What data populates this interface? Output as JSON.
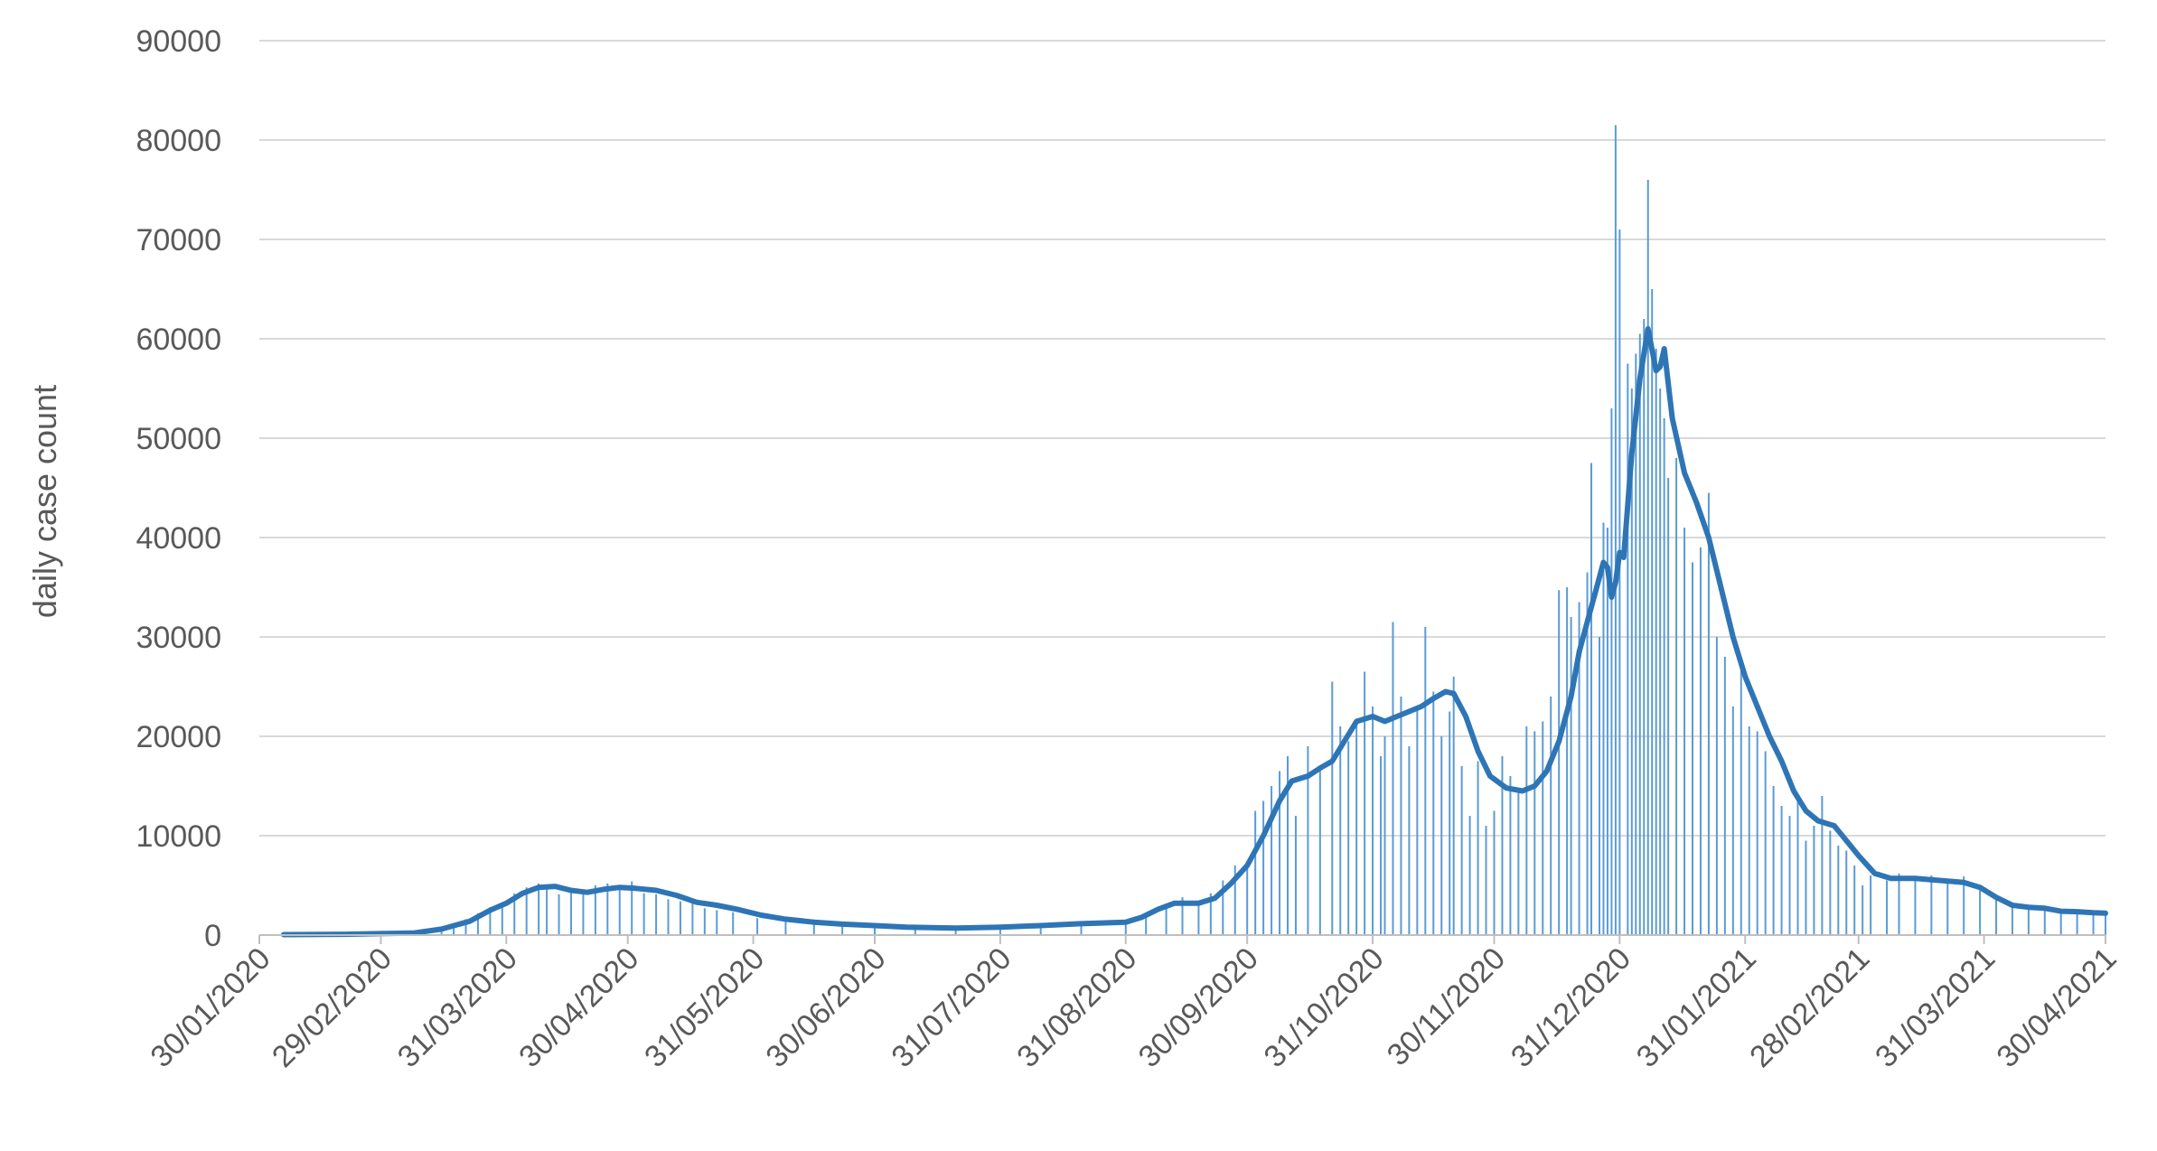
{
  "chart_data": {
    "type": "bar",
    "ylabel": "daily case count",
    "xlabel": "",
    "ylim": [
      0,
      90000
    ],
    "yticks": [
      0,
      10000,
      20000,
      30000,
      40000,
      50000,
      60000,
      70000,
      80000,
      90000
    ],
    "xlim": [
      "2020-01-30",
      "2021-04-30"
    ],
    "xticks": [
      "30/01/2020",
      "29/02/2020",
      "31/03/2020",
      "30/04/2020",
      "31/05/2020",
      "30/06/2020",
      "31/07/2020",
      "31/08/2020",
      "30/09/2020",
      "31/10/2020",
      "30/11/2020",
      "31/12/2020",
      "31/01/2021",
      "28/02/2021",
      "31/03/2021",
      "30/04/2021"
    ],
    "grid": true,
    "colors": {
      "bars": "#5b9bd5",
      "line": "#2e75b6",
      "grid": "#d9d9d9",
      "axis": "#bfbfbf",
      "text": "#595959"
    },
    "series": [
      {
        "type": "bar",
        "values": [
          [
            "2020-02-05",
            30
          ],
          [
            "2020-02-15",
            50
          ],
          [
            "2020-02-25",
            100
          ],
          [
            "2020-03-01",
            150
          ],
          [
            "2020-03-05",
            200
          ],
          [
            "2020-03-10",
            350
          ],
          [
            "2020-03-15",
            700
          ],
          [
            "2020-03-18",
            1000
          ],
          [
            "2020-03-21",
            1600
          ],
          [
            "2020-03-24",
            2200
          ],
          [
            "2020-03-27",
            2800
          ],
          [
            "2020-03-30",
            3200
          ],
          [
            "2020-04-02",
            4200
          ],
          [
            "2020-04-05",
            4800
          ],
          [
            "2020-04-08",
            5200
          ],
          [
            "2020-04-10",
            5000
          ],
          [
            "2020-04-13",
            4100
          ],
          [
            "2020-04-16",
            4600
          ],
          [
            "2020-04-19",
            4400
          ],
          [
            "2020-04-22",
            5000
          ],
          [
            "2020-04-25",
            5200
          ],
          [
            "2020-04-28",
            4700
          ],
          [
            "2020-05-01",
            5400
          ],
          [
            "2020-05-04",
            4200
          ],
          [
            "2020-05-07",
            4100
          ],
          [
            "2020-05-10",
            3600
          ],
          [
            "2020-05-13",
            3400
          ],
          [
            "2020-05-16",
            3200
          ],
          [
            "2020-05-19",
            2700
          ],
          [
            "2020-05-22",
            2500
          ],
          [
            "2020-05-26",
            2300
          ],
          [
            "2020-06-01",
            1700
          ],
          [
            "2020-06-08",
            1400
          ],
          [
            "2020-06-15",
            1200
          ],
          [
            "2020-06-22",
            1000
          ],
          [
            "2020-06-30",
            900
          ],
          [
            "2020-07-10",
            700
          ],
          [
            "2020-07-20",
            700
          ],
          [
            "2020-07-31",
            800
          ],
          [
            "2020-08-10",
            900
          ],
          [
            "2020-08-20",
            1100
          ],
          [
            "2020-08-31",
            1300
          ],
          [
            "2020-09-05",
            2000
          ],
          [
            "2020-09-10",
            3000
          ],
          [
            "2020-09-14",
            3800
          ],
          [
            "2020-09-18",
            3100
          ],
          [
            "2020-09-21",
            4200
          ],
          [
            "2020-09-24",
            5500
          ],
          [
            "2020-09-27",
            7000
          ],
          [
            "2020-09-30",
            7200
          ],
          [
            "2020-10-02",
            12500
          ],
          [
            "2020-10-04",
            13500
          ],
          [
            "2020-10-06",
            15000
          ],
          [
            "2020-10-08",
            16500
          ],
          [
            "2020-10-10",
            18000
          ],
          [
            "2020-10-12",
            12000
          ],
          [
            "2020-10-15",
            19000
          ],
          [
            "2020-10-18",
            16500
          ],
          [
            "2020-10-21",
            25500
          ],
          [
            "2020-10-23",
            21000
          ],
          [
            "2020-10-25",
            19500
          ],
          [
            "2020-10-27",
            21500
          ],
          [
            "2020-10-29",
            26500
          ],
          [
            "2020-10-31",
            23000
          ],
          [
            "2020-11-02",
            18000
          ],
          [
            "2020-11-03",
            20000
          ],
          [
            "2020-11-05",
            31500
          ],
          [
            "2020-11-07",
            24000
          ],
          [
            "2020-11-09",
            19000
          ],
          [
            "2020-11-11",
            23000
          ],
          [
            "2020-11-13",
            31000
          ],
          [
            "2020-11-15",
            24500
          ],
          [
            "2020-11-17",
            20000
          ],
          [
            "2020-11-19",
            22500
          ],
          [
            "2020-11-20",
            26000
          ],
          [
            "2020-11-22",
            17000
          ],
          [
            "2020-11-24",
            12000
          ],
          [
            "2020-11-26",
            17500
          ],
          [
            "2020-11-28",
            11000
          ],
          [
            "2020-11-30",
            12500
          ],
          [
            "2020-12-02",
            18000
          ],
          [
            "2020-12-04",
            16000
          ],
          [
            "2020-12-06",
            14500
          ],
          [
            "2020-12-08",
            21000
          ],
          [
            "2020-12-10",
            20500
          ],
          [
            "2020-12-12",
            21500
          ],
          [
            "2020-12-14",
            24000
          ],
          [
            "2020-12-16",
            34700
          ],
          [
            "2020-12-18",
            35000
          ],
          [
            "2020-12-19",
            32000
          ],
          [
            "2020-12-21",
            33500
          ],
          [
            "2020-12-23",
            36500
          ],
          [
            "2020-12-24",
            47500
          ],
          [
            "2020-12-26",
            30000
          ],
          [
            "2020-12-27",
            41500
          ],
          [
            "2020-12-28",
            41000
          ],
          [
            "2020-12-29",
            53000
          ],
          [
            "2020-12-30",
            81500
          ],
          [
            "2020-12-31",
            71000
          ],
          [
            "2021-01-02",
            57500
          ],
          [
            "2021-01-03",
            55000
          ],
          [
            "2021-01-04",
            58500
          ],
          [
            "2021-01-05",
            60500
          ],
          [
            "2021-01-06",
            62000
          ],
          [
            "2021-01-07",
            76000
          ],
          [
            "2021-01-08",
            65000
          ],
          [
            "2021-01-09",
            59000
          ],
          [
            "2021-01-10",
            55000
          ],
          [
            "2021-01-11",
            52000
          ],
          [
            "2021-01-12",
            46000
          ],
          [
            "2021-01-14",
            48000
          ],
          [
            "2021-01-16",
            41000
          ],
          [
            "2021-01-18",
            37500
          ],
          [
            "2021-01-20",
            39000
          ],
          [
            "2021-01-22",
            44500
          ],
          [
            "2021-01-24",
            30000
          ],
          [
            "2021-01-26",
            28000
          ],
          [
            "2021-01-28",
            23000
          ],
          [
            "2021-01-30",
            27000
          ],
          [
            "2021-02-01",
            21000
          ],
          [
            "2021-02-03",
            20500
          ],
          [
            "2021-02-05",
            18500
          ],
          [
            "2021-02-07",
            15000
          ],
          [
            "2021-02-09",
            13000
          ],
          [
            "2021-02-11",
            12000
          ],
          [
            "2021-02-13",
            13500
          ],
          [
            "2021-02-15",
            9500
          ],
          [
            "2021-02-17",
            11000
          ],
          [
            "2021-02-19",
            14000
          ],
          [
            "2021-02-21",
            10500
          ],
          [
            "2021-02-23",
            9000
          ],
          [
            "2021-02-25",
            8500
          ],
          [
            "2021-02-27",
            7000
          ],
          [
            "2021-03-01",
            5000
          ],
          [
            "2021-03-03",
            6000
          ],
          [
            "2021-03-07",
            5500
          ],
          [
            "2021-03-10",
            6200
          ],
          [
            "2021-03-14",
            5500
          ],
          [
            "2021-03-18",
            6000
          ],
          [
            "2021-03-22",
            5300
          ],
          [
            "2021-03-26",
            5900
          ],
          [
            "2021-03-30",
            4500
          ],
          [
            "2021-04-03",
            3600
          ],
          [
            "2021-04-07",
            2900
          ],
          [
            "2021-04-11",
            2700
          ],
          [
            "2021-04-15",
            2800
          ],
          [
            "2021-04-19",
            2400
          ],
          [
            "2021-04-23",
            2500
          ],
          [
            "2021-04-27",
            2200
          ],
          [
            "2021-04-30",
            2100
          ]
        ]
      },
      {
        "type": "line",
        "values": [
          [
            "2020-02-05",
            50
          ],
          [
            "2020-02-20",
            80
          ],
          [
            "2020-03-01",
            150
          ],
          [
            "2020-03-08",
            200
          ],
          [
            "2020-03-15",
            600
          ],
          [
            "2020-03-22",
            1400
          ],
          [
            "2020-03-27",
            2500
          ],
          [
            "2020-03-31",
            3200
          ],
          [
            "2020-04-04",
            4200
          ],
          [
            "2020-04-08",
            4800
          ],
          [
            "2020-04-12",
            4900
          ],
          [
            "2020-04-16",
            4500
          ],
          [
            "2020-04-20",
            4300
          ],
          [
            "2020-04-24",
            4600
          ],
          [
            "2020-04-28",
            4800
          ],
          [
            "2020-05-02",
            4700
          ],
          [
            "2020-05-07",
            4500
          ],
          [
            "2020-05-12",
            4000
          ],
          [
            "2020-05-17",
            3300
          ],
          [
            "2020-05-22",
            3000
          ],
          [
            "2020-05-27",
            2600
          ],
          [
            "2020-06-02",
            2000
          ],
          [
            "2020-06-08",
            1600
          ],
          [
            "2020-06-15",
            1300
          ],
          [
            "2020-06-22",
            1100
          ],
          [
            "2020-06-30",
            950
          ],
          [
            "2020-07-08",
            800
          ],
          [
            "2020-07-20",
            700
          ],
          [
            "2020-07-31",
            800
          ],
          [
            "2020-08-10",
            950
          ],
          [
            "2020-08-20",
            1150
          ],
          [
            "2020-08-31",
            1300
          ],
          [
            "2020-09-04",
            1800
          ],
          [
            "2020-09-08",
            2600
          ],
          [
            "2020-09-12",
            3200
          ],
          [
            "2020-09-18",
            3200
          ],
          [
            "2020-09-22",
            3700
          ],
          [
            "2020-09-26",
            5200
          ],
          [
            "2020-09-30",
            7000
          ],
          [
            "2020-10-04",
            10000
          ],
          [
            "2020-10-08",
            13500
          ],
          [
            "2020-10-11",
            15500
          ],
          [
            "2020-10-15",
            16000
          ],
          [
            "2020-10-18",
            16800
          ],
          [
            "2020-10-21",
            17500
          ],
          [
            "2020-10-24",
            19500
          ],
          [
            "2020-10-27",
            21500
          ],
          [
            "2020-10-31",
            22000
          ],
          [
            "2020-11-03",
            21500
          ],
          [
            "2020-11-06",
            22000
          ],
          [
            "2020-11-09",
            22500
          ],
          [
            "2020-11-12",
            23000
          ],
          [
            "2020-11-15",
            23800
          ],
          [
            "2020-11-18",
            24500
          ],
          [
            "2020-11-20",
            24300
          ],
          [
            "2020-11-23",
            22000
          ],
          [
            "2020-11-26",
            18500
          ],
          [
            "2020-11-29",
            16000
          ],
          [
            "2020-12-03",
            14800
          ],
          [
            "2020-12-07",
            14500
          ],
          [
            "2020-12-10",
            15000
          ],
          [
            "2020-12-13",
            16500
          ],
          [
            "2020-12-16",
            19500
          ],
          [
            "2020-12-19",
            24000
          ],
          [
            "2020-12-21",
            28500
          ],
          [
            "2020-12-23",
            31500
          ],
          [
            "2020-12-25",
            34500
          ],
          [
            "2020-12-27",
            37500
          ],
          [
            "2020-12-28",
            37000
          ],
          [
            "2020-12-29",
            34000
          ],
          [
            "2020-12-30",
            35500
          ],
          [
            "2020-12-31",
            38500
          ],
          [
            "2021-01-01",
            38000
          ],
          [
            "2021-01-03",
            48500
          ],
          [
            "2021-01-05",
            56000
          ],
          [
            "2021-01-07",
            61000
          ],
          [
            "2021-01-09",
            56800
          ],
          [
            "2021-01-10",
            57200
          ],
          [
            "2021-01-11",
            59000
          ],
          [
            "2021-01-13",
            52000
          ],
          [
            "2021-01-16",
            46500
          ],
          [
            "2021-01-19",
            43500
          ],
          [
            "2021-01-22",
            40000
          ],
          [
            "2021-01-25",
            35000
          ],
          [
            "2021-01-28",
            30000
          ],
          [
            "2021-01-31",
            26000
          ],
          [
            "2021-02-03",
            23000
          ],
          [
            "2021-02-06",
            20000
          ],
          [
            "2021-02-09",
            17500
          ],
          [
            "2021-02-12",
            14500
          ],
          [
            "2021-02-15",
            12500
          ],
          [
            "2021-02-18",
            11500
          ],
          [
            "2021-02-22",
            11000
          ],
          [
            "2021-02-25",
            9500
          ],
          [
            "2021-02-28",
            8000
          ],
          [
            "2021-03-04",
            6200
          ],
          [
            "2021-03-08",
            5700
          ],
          [
            "2021-03-14",
            5700
          ],
          [
            "2021-03-20",
            5500
          ],
          [
            "2021-03-26",
            5300
          ],
          [
            "2021-03-30",
            4800
          ],
          [
            "2021-04-03",
            3800
          ],
          [
            "2021-04-07",
            3000
          ],
          [
            "2021-04-11",
            2800
          ],
          [
            "2021-04-15",
            2700
          ],
          [
            "2021-04-19",
            2400
          ],
          [
            "2021-04-23",
            2350
          ],
          [
            "2021-04-27",
            2250
          ],
          [
            "2021-04-30",
            2200
          ]
        ]
      }
    ]
  }
}
